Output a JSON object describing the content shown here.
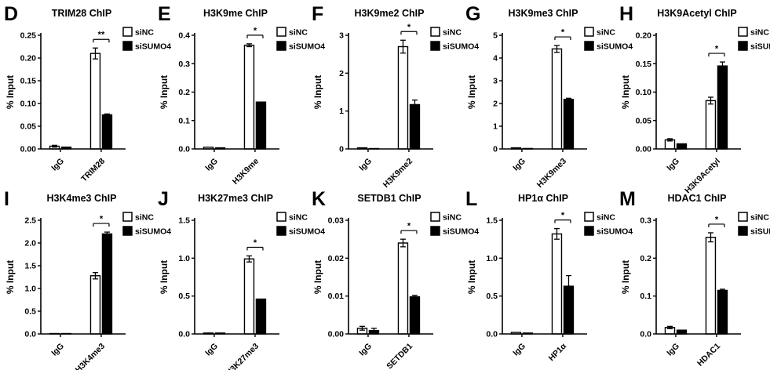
{
  "figure": {
    "name": "ChIP bar-chart figure, panels D-M",
    "background": "#ffffff",
    "text_color": "#000000",
    "legend": {
      "position": "top-right",
      "entries": [
        {
          "label": "siNC",
          "fill": "#ffffff",
          "stroke": "#000000"
        },
        {
          "label": "siSUMO4",
          "fill": "#000000",
          "stroke": "#000000"
        }
      ]
    }
  },
  "chart_data": [
    {
      "type": "bar",
      "panel_letter": "D",
      "title": "TRIM28 ChIP",
      "ylabel": "% Input",
      "ylim": [
        0,
        0.25
      ],
      "ytick_step": 0.05,
      "ytick_decimals": 2,
      "categories": [
        "IgG",
        "TRIM28"
      ],
      "series": [
        {
          "name": "siNC",
          "values": [
            0.006,
            0.21
          ],
          "errors": [
            0.002,
            0.012
          ]
        },
        {
          "name": "siSUMO4",
          "values": [
            0.004,
            0.075
          ],
          "errors": [
            0.001,
            0.002
          ]
        }
      ],
      "significance": {
        "label": "**",
        "category_index": 1
      }
    },
    {
      "type": "bar",
      "panel_letter": "E",
      "title": "H3K9me ChIP",
      "ylabel": "% Input",
      "ylim": [
        0,
        0.4
      ],
      "ytick_step": 0.1,
      "ytick_decimals": 1,
      "categories": [
        "IgG",
        "H3K9me"
      ],
      "series": [
        {
          "name": "siNC",
          "values": [
            0.006,
            0.365
          ],
          "errors": [
            0.001,
            0.005
          ]
        },
        {
          "name": "siSUMO4",
          "values": [
            0.004,
            0.165
          ],
          "errors": [
            0.001,
            0.002
          ]
        }
      ],
      "significance": {
        "label": "*",
        "category_index": 1
      }
    },
    {
      "type": "bar",
      "panel_letter": "F",
      "title": "H3K9me2 ChIP",
      "ylabel": "% Input",
      "ylim": [
        0,
        3
      ],
      "ytick_step": 1,
      "ytick_decimals": 0,
      "categories": [
        "IgG",
        "H3K9me2"
      ],
      "series": [
        {
          "name": "siNC",
          "values": [
            0.03,
            2.7
          ],
          "errors": [
            0.01,
            0.17
          ]
        },
        {
          "name": "siSUMO4",
          "values": [
            0.01,
            1.17
          ],
          "errors": [
            0.005,
            0.12
          ]
        }
      ],
      "significance": {
        "label": "*",
        "category_index": 1
      }
    },
    {
      "type": "bar",
      "panel_letter": "G",
      "title": "H3K9me3 ChIP",
      "ylabel": "% Input",
      "ylim": [
        0,
        5
      ],
      "ytick_step": 1,
      "ytick_decimals": 0,
      "categories": [
        "IgG",
        "H3K9me3"
      ],
      "series": [
        {
          "name": "siNC",
          "values": [
            0.05,
            4.4
          ],
          "errors": [
            0.02,
            0.15
          ]
        },
        {
          "name": "siSUMO4",
          "values": [
            0.02,
            2.18
          ],
          "errors": [
            0.01,
            0.05
          ]
        }
      ],
      "significance": {
        "label": "*",
        "category_index": 1
      }
    },
    {
      "type": "bar",
      "panel_letter": "H",
      "title": "H3K9Acetyl ChIP",
      "ylabel": "% Input",
      "ylim": [
        0,
        0.2
      ],
      "ytick_step": 0.05,
      "ytick_decimals": 2,
      "categories": [
        "IgG",
        "H3K9Acetyl"
      ],
      "series": [
        {
          "name": "siNC",
          "values": [
            0.016,
            0.085
          ],
          "errors": [
            0.002,
            0.006
          ]
        },
        {
          "name": "siSUMO4",
          "values": [
            0.009,
            0.146
          ],
          "errors": [
            0.001,
            0.007
          ]
        }
      ],
      "significance": {
        "label": "*",
        "category_index": 1
      }
    },
    {
      "type": "bar",
      "panel_letter": "I",
      "title": "H3K4me3 ChIP",
      "ylabel": "% Input",
      "ylim": [
        0,
        2.5
      ],
      "ytick_step": 0.5,
      "ytick_decimals": 1,
      "categories": [
        "IgG",
        "H3K4me3"
      ],
      "series": [
        {
          "name": "siNC",
          "values": [
            0.005,
            1.28
          ],
          "errors": [
            0.002,
            0.07
          ]
        },
        {
          "name": "siSUMO4",
          "values": [
            0.004,
            2.2
          ],
          "errors": [
            0.002,
            0.04
          ]
        }
      ],
      "significance": {
        "label": "*",
        "category_index": 1
      }
    },
    {
      "type": "bar",
      "panel_letter": "J",
      "title": "H3K27me3 ChIP",
      "ylabel": "% Input",
      "ylim": [
        0,
        1.5
      ],
      "ytick_step": 0.5,
      "ytick_decimals": 1,
      "categories": [
        "IgG",
        "H3K27me3"
      ],
      "series": [
        {
          "name": "siNC",
          "values": [
            0.012,
            0.99
          ],
          "errors": [
            0.003,
            0.04
          ]
        },
        {
          "name": "siSUMO4",
          "values": [
            0.012,
            0.46
          ],
          "errors": [
            0.003,
            0.01
          ]
        }
      ],
      "significance": {
        "label": "*",
        "category_index": 1
      }
    },
    {
      "type": "bar",
      "panel_letter": "K",
      "title": "SETDB1 ChIP",
      "ylabel": "% Input",
      "ylim": [
        0,
        0.03
      ],
      "ytick_step": 0.01,
      "ytick_decimals": 2,
      "categories": [
        "IgG",
        "SETDB1"
      ],
      "series": [
        {
          "name": "siNC",
          "values": [
            0.0015,
            0.024
          ],
          "errors": [
            0.0005,
            0.001
          ]
        },
        {
          "name": "siSUMO4",
          "values": [
            0.0009,
            0.0098
          ],
          "errors": [
            0.0006,
            0.0004
          ]
        }
      ],
      "significance": {
        "label": "*",
        "category_index": 1
      }
    },
    {
      "type": "bar",
      "panel_letter": "L",
      "title": "HP1α ChIP",
      "ylabel": "% Input",
      "ylim": [
        0,
        1.5
      ],
      "ytick_step": 0.5,
      "ytick_decimals": 1,
      "categories": [
        "IgG",
        "HP1α"
      ],
      "series": [
        {
          "name": "siNC",
          "values": [
            0.02,
            1.32
          ],
          "errors": [
            0.005,
            0.07
          ]
        },
        {
          "name": "siSUMO4",
          "values": [
            0.012,
            0.63
          ],
          "errors": [
            0.004,
            0.14
          ]
        }
      ],
      "significance": {
        "label": "*",
        "category_index": 1
      }
    },
    {
      "type": "bar",
      "panel_letter": "M",
      "title": "HDAC1 ChIP",
      "ylabel": "% Input",
      "ylim": [
        0,
        0.3
      ],
      "ytick_step": 0.1,
      "ytick_decimals": 1,
      "categories": [
        "IgG",
        "HDAC1"
      ],
      "series": [
        {
          "name": "siNC",
          "values": [
            0.017,
            0.255
          ],
          "errors": [
            0.003,
            0.012
          ]
        },
        {
          "name": "siSUMO4",
          "values": [
            0.01,
            0.115
          ],
          "errors": [
            0.002,
            0.003
          ]
        }
      ],
      "significance": {
        "label": "*",
        "category_index": 1
      }
    }
  ]
}
